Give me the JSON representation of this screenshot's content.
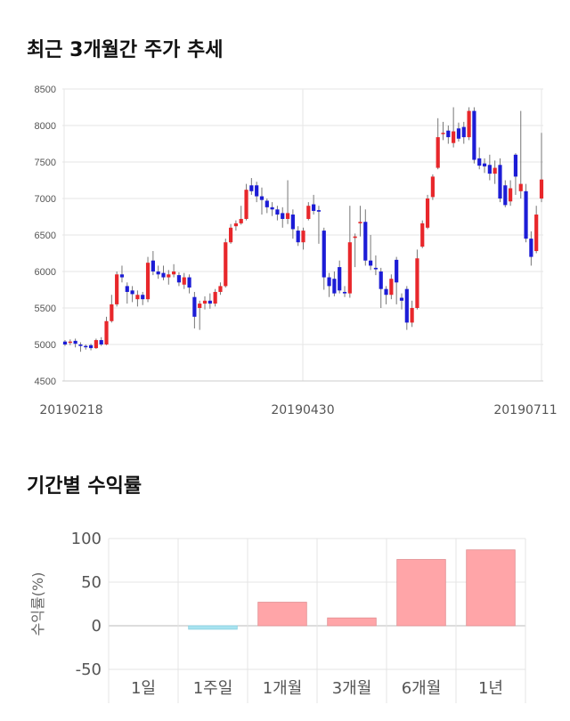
{
  "section1": {
    "title": "최근 3개월간 주가 추세"
  },
  "section2": {
    "title": "기간별 수익률"
  },
  "chart_data": [
    {
      "type": "candlestick",
      "title": "최근 3개월간 주가 추세",
      "ylim": [
        4500,
        8500
      ],
      "yticks": [
        4500,
        5000,
        5500,
        6000,
        6500,
        7000,
        7500,
        8000,
        8500
      ],
      "xtick_labels": [
        "20190218",
        "20190430",
        "20190711"
      ],
      "grid": true,
      "colors": {
        "up": "#e8272b",
        "down": "#1c1cd6",
        "wick": "#777777"
      },
      "candles": [
        {
          "o": 5040,
          "c": 5000,
          "h": 5060,
          "l": 4980
        },
        {
          "o": 5030,
          "c": 5040,
          "h": 5070,
          "l": 4990
        },
        {
          "o": 5050,
          "c": 5010,
          "h": 5080,
          "l": 4960
        },
        {
          "o": 5000,
          "c": 4980,
          "h": 5030,
          "l": 4900
        },
        {
          "o": 4980,
          "c": 4970,
          "h": 5000,
          "l": 4930
        },
        {
          "o": 4990,
          "c": 4950,
          "h": 5010,
          "l": 4920
        },
        {
          "o": 4950,
          "c": 5060,
          "h": 5080,
          "l": 4940
        },
        {
          "o": 5060,
          "c": 5000,
          "h": 5100,
          "l": 4980
        },
        {
          "o": 5000,
          "c": 5320,
          "h": 5380,
          "l": 4990
        },
        {
          "o": 5320,
          "c": 5550,
          "h": 5680,
          "l": 5300
        },
        {
          "o": 5550,
          "c": 5960,
          "h": 6000,
          "l": 5520
        },
        {
          "o": 5960,
          "c": 5920,
          "h": 6080,
          "l": 5850
        },
        {
          "o": 5800,
          "c": 5720,
          "h": 5850,
          "l": 5560
        },
        {
          "o": 5740,
          "c": 5690,
          "h": 5800,
          "l": 5580
        },
        {
          "o": 5620,
          "c": 5680,
          "h": 5740,
          "l": 5520
        },
        {
          "o": 5680,
          "c": 5620,
          "h": 5720,
          "l": 5540
        },
        {
          "o": 5620,
          "c": 6120,
          "h": 6200,
          "l": 5580
        },
        {
          "o": 6150,
          "c": 6000,
          "h": 6280,
          "l": 5950
        },
        {
          "o": 6000,
          "c": 5960,
          "h": 6080,
          "l": 5900
        },
        {
          "o": 5980,
          "c": 5920,
          "h": 6080,
          "l": 5880
        },
        {
          "o": 5920,
          "c": 5960,
          "h": 6020,
          "l": 5820
        },
        {
          "o": 5960,
          "c": 6000,
          "h": 6100,
          "l": 5920
        },
        {
          "o": 5950,
          "c": 5850,
          "h": 5990,
          "l": 5800
        },
        {
          "o": 5820,
          "c": 5920,
          "h": 5980,
          "l": 5760
        },
        {
          "o": 5920,
          "c": 5780,
          "h": 5960,
          "l": 5700
        },
        {
          "o": 5650,
          "c": 5380,
          "h": 5720,
          "l": 5220
        },
        {
          "o": 5500,
          "c": 5560,
          "h": 5600,
          "l": 5200
        },
        {
          "o": 5560,
          "c": 5600,
          "h": 5660,
          "l": 5480
        },
        {
          "o": 5600,
          "c": 5560,
          "h": 5700,
          "l": 5490
        },
        {
          "o": 5560,
          "c": 5720,
          "h": 5760,
          "l": 5520
        },
        {
          "o": 5720,
          "c": 5800,
          "h": 5850,
          "l": 5680
        },
        {
          "o": 5800,
          "c": 6400,
          "h": 6450,
          "l": 5780
        },
        {
          "o": 6400,
          "c": 6600,
          "h": 6650,
          "l": 6380
        },
        {
          "o": 6620,
          "c": 6660,
          "h": 6700,
          "l": 6560
        },
        {
          "o": 6660,
          "c": 6720,
          "h": 6900,
          "l": 6640
        },
        {
          "o": 6720,
          "c": 7120,
          "h": 7200,
          "l": 6700
        },
        {
          "o": 7180,
          "c": 7100,
          "h": 7280,
          "l": 7050
        },
        {
          "o": 7180,
          "c": 7030,
          "h": 7230,
          "l": 6950
        },
        {
          "o": 7030,
          "c": 6980,
          "h": 7150,
          "l": 6780
        },
        {
          "o": 6970,
          "c": 6880,
          "h": 7000,
          "l": 6800
        },
        {
          "o": 6880,
          "c": 6850,
          "h": 6950,
          "l": 6760
        },
        {
          "o": 6850,
          "c": 6780,
          "h": 6900,
          "l": 6700
        },
        {
          "o": 6800,
          "c": 6720,
          "h": 6880,
          "l": 6600
        },
        {
          "o": 6720,
          "c": 6800,
          "h": 7250,
          "l": 6650
        },
        {
          "o": 6780,
          "c": 6580,
          "h": 6850,
          "l": 6450
        },
        {
          "o": 6560,
          "c": 6400,
          "h": 6620,
          "l": 6350
        },
        {
          "o": 6400,
          "c": 6560,
          "h": 6600,
          "l": 6300
        },
        {
          "o": 6720,
          "c": 6900,
          "h": 6950,
          "l": 6700
        },
        {
          "o": 6920,
          "c": 6830,
          "h": 7050,
          "l": 6780
        },
        {
          "o": 6840,
          "c": 6820,
          "h": 6900,
          "l": 6380
        },
        {
          "o": 6560,
          "c": 5920,
          "h": 6600,
          "l": 5750
        },
        {
          "o": 5920,
          "c": 5800,
          "h": 5980,
          "l": 5650
        },
        {
          "o": 5900,
          "c": 5700,
          "h": 6000,
          "l": 5660
        },
        {
          "o": 6060,
          "c": 5740,
          "h": 6150,
          "l": 5700
        },
        {
          "o": 5720,
          "c": 5700,
          "h": 5800,
          "l": 5650
        },
        {
          "o": 5700,
          "c": 6400,
          "h": 6900,
          "l": 5640
        },
        {
          "o": 6460,
          "c": 6480,
          "h": 6520,
          "l": 6060
        },
        {
          "o": 6660,
          "c": 6680,
          "h": 6900,
          "l": 6480
        },
        {
          "o": 6680,
          "c": 6150,
          "h": 6850,
          "l": 6080
        },
        {
          "o": 6150,
          "c": 6080,
          "h": 6500,
          "l": 6020
        },
        {
          "o": 6050,
          "c": 6030,
          "h": 6220,
          "l": 5950
        },
        {
          "o": 6000,
          "c": 5760,
          "h": 6050,
          "l": 5500
        },
        {
          "o": 5760,
          "c": 5680,
          "h": 5800,
          "l": 5550
        },
        {
          "o": 5680,
          "c": 5900,
          "h": 5960,
          "l": 5620
        },
        {
          "o": 6160,
          "c": 5850,
          "h": 6200,
          "l": 5550
        },
        {
          "o": 5640,
          "c": 5600,
          "h": 5700,
          "l": 5480
        },
        {
          "o": 5760,
          "c": 5300,
          "h": 5800,
          "l": 5200
        },
        {
          "o": 5300,
          "c": 5500,
          "h": 5600,
          "l": 5240
        },
        {
          "o": 5500,
          "c": 6180,
          "h": 6300,
          "l": 5480
        },
        {
          "o": 6340,
          "c": 6660,
          "h": 6700,
          "l": 6320
        },
        {
          "o": 6600,
          "c": 7000,
          "h": 7050,
          "l": 6580
        },
        {
          "o": 7020,
          "c": 7300,
          "h": 7330,
          "l": 6980
        },
        {
          "o": 7420,
          "c": 7840,
          "h": 8100,
          "l": 7400
        },
        {
          "o": 7900,
          "c": 7900,
          "h": 8050,
          "l": 7800
        },
        {
          "o": 7930,
          "c": 7840,
          "h": 8000,
          "l": 7750
        },
        {
          "o": 7760,
          "c": 7920,
          "h": 8250,
          "l": 7700
        },
        {
          "o": 7960,
          "c": 7820,
          "h": 8040,
          "l": 7780
        },
        {
          "o": 7980,
          "c": 7840,
          "h": 8050,
          "l": 7750
        },
        {
          "o": 7840,
          "c": 8200,
          "h": 8250,
          "l": 7800
        },
        {
          "o": 8200,
          "c": 7530,
          "h": 8250,
          "l": 7480
        },
        {
          "o": 7550,
          "c": 7450,
          "h": 7700,
          "l": 7400
        },
        {
          "o": 7480,
          "c": 7440,
          "h": 7550,
          "l": 7350
        },
        {
          "o": 7460,
          "c": 7340,
          "h": 7600,
          "l": 7250
        },
        {
          "o": 7340,
          "c": 7420,
          "h": 7520,
          "l": 7200
        },
        {
          "o": 7460,
          "c": 7000,
          "h": 7550,
          "l": 6950
        },
        {
          "o": 7180,
          "c": 6910,
          "h": 7250,
          "l": 6880
        },
        {
          "o": 6960,
          "c": 7140,
          "h": 7250,
          "l": 6900
        },
        {
          "o": 7600,
          "c": 7300,
          "h": 7620,
          "l": 7050
        },
        {
          "o": 7100,
          "c": 7200,
          "h": 8200,
          "l": 7000
        },
        {
          "o": 7100,
          "c": 6450,
          "h": 7200,
          "l": 6400
        },
        {
          "o": 6450,
          "c": 6200,
          "h": 6550,
          "l": 6080
        },
        {
          "o": 6280,
          "c": 6780,
          "h": 6900,
          "l": 6250
        },
        {
          "o": 7000,
          "c": 7260,
          "h": 7900,
          "l": 6950
        }
      ]
    },
    {
      "type": "bar",
      "title": "기간별 수익률",
      "ylabel": "수익률(%)",
      "categories": [
        "1일",
        "1주일",
        "1개월",
        "3개월",
        "6개월",
        "1년"
      ],
      "values": [
        0,
        -4,
        27,
        9,
        76,
        87
      ],
      "ylim": [
        -50,
        100
      ],
      "yticks": [
        -50,
        0,
        50,
        100
      ],
      "grid": true,
      "colors": {
        "positive": "#ffa5a8",
        "negative": "#a8e3f0"
      }
    }
  ]
}
